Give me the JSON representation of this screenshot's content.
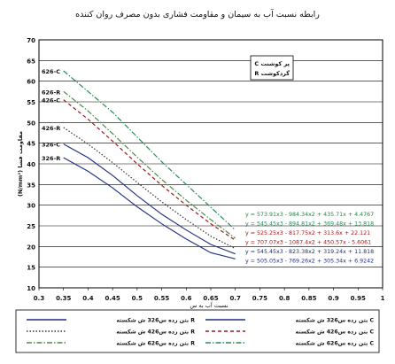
{
  "chart_data": {
    "type": "line",
    "title": "رابطه نسبت آب به سیمان و مقاومت فشاری بدون مصرف روان کننده",
    "xlabel": "نسبت آب به س",
    "ylabel": "(N/mm²) مقاومت فشا",
    "xlim": [
      0.3,
      1
    ],
    "ylim": [
      10,
      70
    ],
    "xticks": [
      "0.3",
      "0.35",
      "0.4",
      "0.45",
      "0.5",
      "0.55",
      "0.6",
      "0.65",
      "0.7",
      "0.75",
      "0.8",
      "0.85",
      "0.9",
      "0.95",
      "1"
    ],
    "yticks": [
      "10",
      "15",
      "20",
      "25",
      "30",
      "35",
      "40",
      "45",
      "50",
      "55",
      "60",
      "65",
      "70"
    ],
    "grid": true,
    "legend_position": "bottom",
    "key_box": [
      "C پر کوشنت",
      "R گردکوشت"
    ],
    "series": [
      {
        "name": "بتن رده س326 ش شکسته R",
        "color": "#1f2f80",
        "dash": "solid",
        "label": "326-R",
        "x": [
          0.35,
          0.4,
          0.45,
          0.5,
          0.55,
          0.6,
          0.65,
          0.7
        ],
        "y": [
          41.5,
          38.2,
          34.2,
          29.6,
          25.5,
          21.8,
          18.5,
          17.0
        ]
      },
      {
        "name": "بتن رده س326 ش شکسته C",
        "color": "#1f2f80",
        "dash": "solid",
        "label": "326-C",
        "x": [
          0.35,
          0.4,
          0.45,
          0.5,
          0.55,
          0.6,
          0.65,
          0.7
        ],
        "y": [
          44.8,
          41.5,
          37.2,
          32.3,
          27.8,
          24.0,
          20.5,
          18.2
        ]
      },
      {
        "name": "بتن رده س426 ش شکسته R",
        "color": "#333333",
        "dash": "dot",
        "label": "426-R",
        "x": [
          0.35,
          0.4,
          0.45,
          0.5,
          0.55,
          0.6,
          0.65,
          0.7
        ],
        "y": [
          48.8,
          44.8,
          40.3,
          35.5,
          30.8,
          26.5,
          22.5,
          19.5
        ]
      },
      {
        "name": "بتن رده س426 ش شکسته C",
        "color": "#a01818",
        "dash": "dash",
        "label": "426-C",
        "x": [
          0.35,
          0.4,
          0.45,
          0.5,
          0.55,
          0.6,
          0.65,
          0.7
        ],
        "y": [
          55.5,
          50.8,
          45.5,
          40.0,
          34.8,
          30.0,
          25.5,
          21.5
        ]
      },
      {
        "name": "بتن رده س626 ش شکسته R",
        "color": "#4c8a4c",
        "dash": "dashdot",
        "label": "626-R",
        "x": [
          0.35,
          0.4,
          0.45,
          0.5,
          0.55,
          0.6,
          0.65,
          0.7
        ],
        "y": [
          57.5,
          52.8,
          47.3,
          41.6,
          36.2,
          31.2,
          26.5,
          22.0
        ]
      },
      {
        "name": "بتن رده س626 ش شکسته C",
        "color": "#2d8a5a",
        "dash": "dashdot",
        "label": "626-C",
        "x": [
          0.35,
          0.4,
          0.45,
          0.5,
          0.55,
          0.6,
          0.65,
          0.7
        ],
        "y": [
          62.5,
          57.5,
          52.5,
          46.5,
          40.5,
          35.0,
          29.5,
          24.0
        ]
      }
    ],
    "equations": [
      {
        "text": "y = 573.91x3 - 984.34x2 + 435.71x + 4.4767",
        "color": "#1f8a3a"
      },
      {
        "text": "y = 545.45x3 - 894.81x2 + 369.48x + 13.818",
        "color": "#2d8a5a"
      },
      {
        "text": "y = 525.25x3 - 817.75x2 + 313.6x + 22.121",
        "color": "#a01818"
      },
      {
        "text": "y = 707.07x3 - 1087.4x2 + 450.57x - 5.6061",
        "color": "#a01818"
      },
      {
        "text": "y = 545.45x3 - 823.38x2 + 319.24x + 11.818",
        "color": "#1f2f80"
      },
      {
        "text": "y = 505.05x3 - 769.26x2 + 305.34x + 6.9242",
        "color": "#1f2f80"
      }
    ]
  }
}
